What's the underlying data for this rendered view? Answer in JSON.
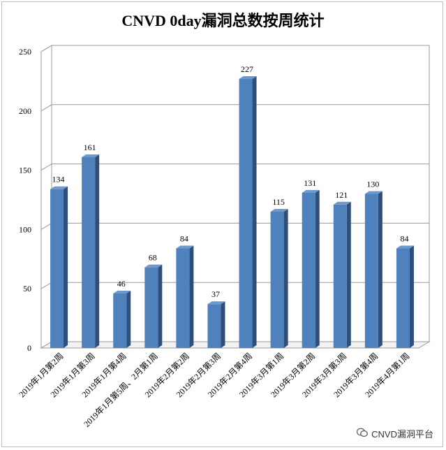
{
  "chart_data": {
    "type": "bar",
    "title": "CNVD 0day漏洞总数按周统计",
    "categories": [
      "2019年1月第2周",
      "2019年1月第3周",
      "2019年1月第4周",
      "2019年1月第5周、2月第1周",
      "2019年2月第2周",
      "2019年2月第3周",
      "2019年2月第4周",
      "2019年3月第1周",
      "2019年3月第2周",
      "2019年3月第3周",
      "2019年3月第4周",
      "2019年4月第1周"
    ],
    "values": [
      134,
      161,
      46,
      68,
      84,
      37,
      227,
      115,
      131,
      121,
      130,
      84
    ],
    "ylim": [
      0,
      250
    ],
    "yticks": [
      0,
      50,
      100,
      150,
      200,
      250
    ],
    "grid": true,
    "legend": "none",
    "style": "3d-column",
    "colors": {
      "bar_front": "#4f81bd",
      "bar_side": "#2f4f7a",
      "bar_top": "#6f99cc",
      "grid": "#999999"
    }
  },
  "watermark": {
    "text": "CNVD漏洞平台",
    "icon": "wechat-icon"
  }
}
